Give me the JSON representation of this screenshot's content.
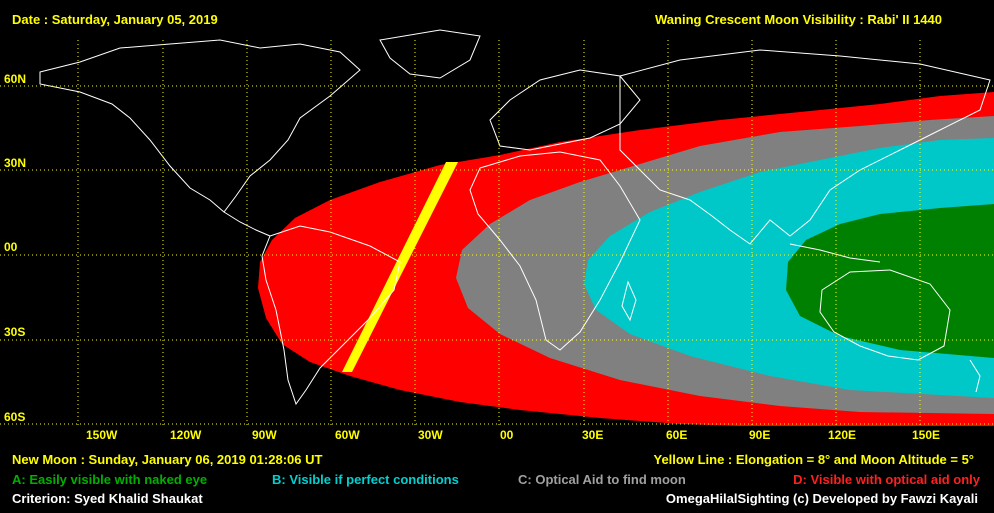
{
  "header": {
    "date": "Date : Saturday, January 05, 2019",
    "title": "Waning Crescent Moon Visibility : Rabi' II 1440"
  },
  "lat_labels": [
    "60N",
    "30N",
    "00",
    "30S",
    "60S"
  ],
  "lon_labels": [
    "150W",
    "120W",
    "90W",
    "60W",
    "30W",
    "00",
    "30E",
    "60E",
    "90E",
    "120E",
    "150E"
  ],
  "footer": {
    "new_moon": "New Moon : Sunday, January 06, 2019  01:28:06  UT",
    "yellow_line": "Yellow Line : Elongation = 8° and Moon Altitude = 5°",
    "legend_a": "A: Easily visible with naked eye",
    "legend_b": "B: Visible if perfect conditions",
    "legend_c": "C: Optical Aid to find moon",
    "legend_d": "D: Visible with optical aid only",
    "criterion": "Criterion: Syed Khalid Shaukat",
    "credit": "OmegaHilalSighting  (c)  Developed by Fawzi Kayali"
  },
  "colors": {
    "zone_a": "#008000",
    "zone_b": "#00c8c8",
    "zone_c": "#808080",
    "zone_d": "#ff0000",
    "yellow_line": "#ffff00",
    "grid": "#ffff00",
    "coast": "#ffffff"
  }
}
